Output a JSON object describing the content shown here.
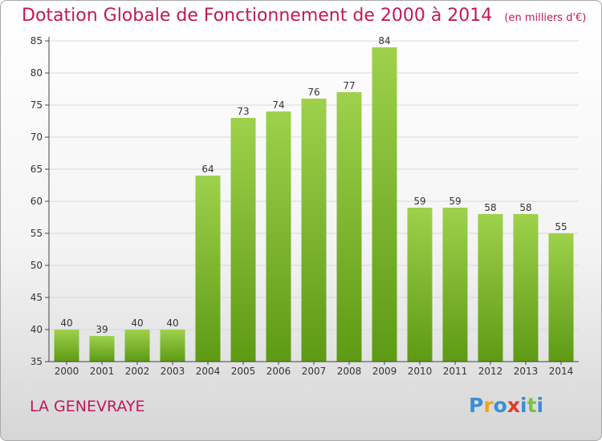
{
  "title": "Dotation Globale de Fonctionnement de 2000 à 2014",
  "subtitle": "(en milliers d'€)",
  "place": "LA GENEVRAYE",
  "logo": {
    "text": "Proxiti",
    "colors": [
      "#3a8fd6",
      "#f2a31b",
      "#3a8fd6",
      "#e23a2e",
      "#3a8fd6",
      "#7cc242",
      "#3a8fd6"
    ]
  },
  "colors": {
    "bar_light": "#9ed14c",
    "bar_dark": "#5e9a14",
    "title": "#c2185b",
    "axis": "#444444",
    "grid": "#d9d9d9"
  },
  "chart_data": {
    "type": "bar",
    "categories": [
      "2000",
      "2001",
      "2002",
      "2003",
      "2004",
      "2005",
      "2006",
      "2007",
      "2008",
      "2009",
      "2010",
      "2011",
      "2012",
      "2013",
      "2014"
    ],
    "values": [
      40,
      39,
      40,
      40,
      64,
      73,
      74,
      76,
      77,
      84,
      59,
      59,
      58,
      58,
      55
    ],
    "ylim": [
      35,
      85
    ],
    "yticks": [
      35,
      40,
      45,
      50,
      55,
      60,
      65,
      70,
      75,
      80,
      85
    ],
    "title": "Dotation Globale de Fonctionnement de 2000 à 2014",
    "xlabel": "",
    "ylabel": "",
    "grid": true
  }
}
